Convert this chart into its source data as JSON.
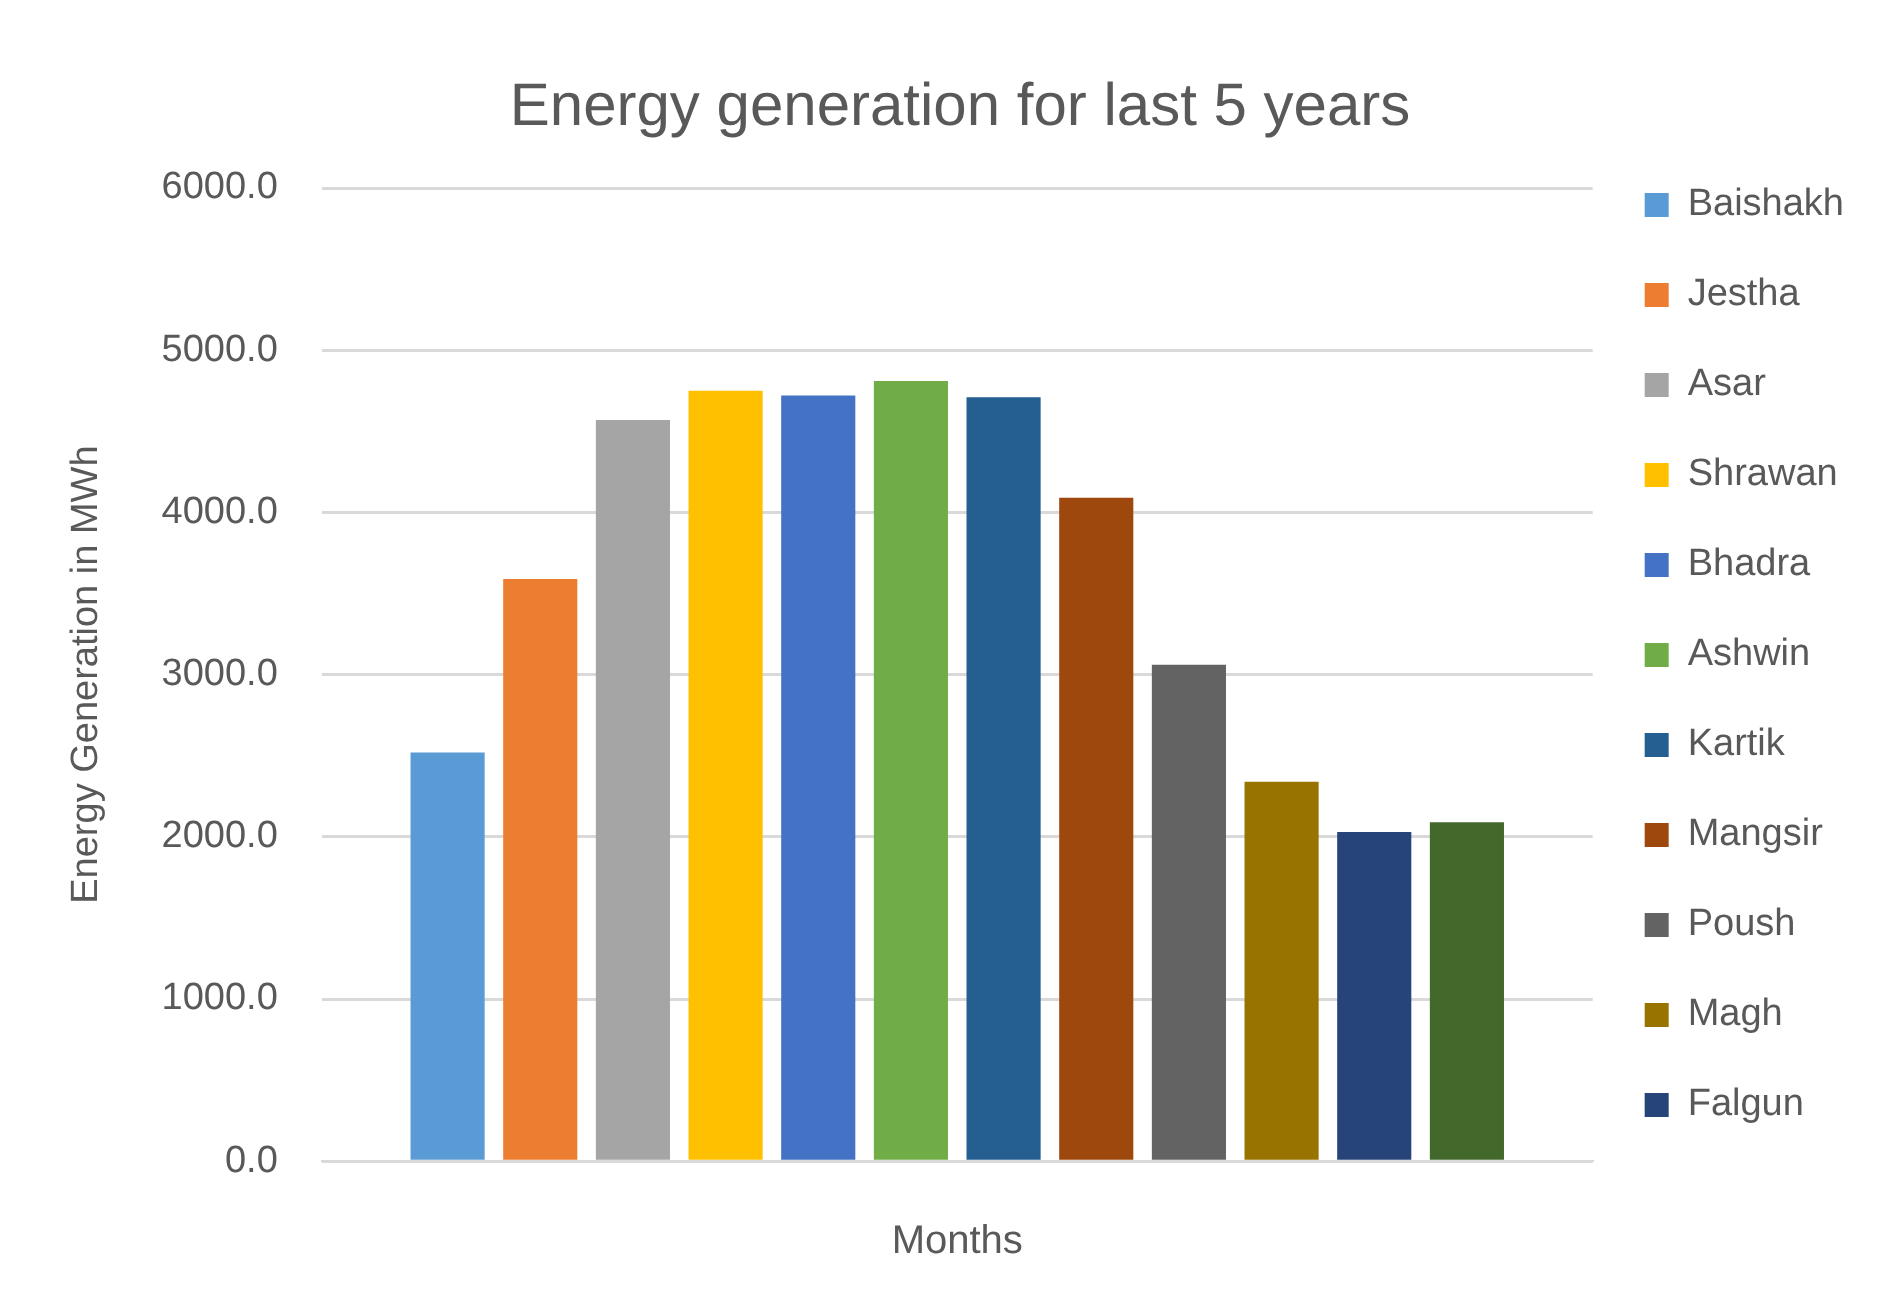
{
  "chart_data": {
    "type": "bar",
    "title": "Energy generation for last 5 years",
    "xlabel": "Months",
    "ylabel": "Energy Generation in MWh",
    "categories": [
      null
    ],
    "series": [
      {
        "name": "Baishakh",
        "color": "#5b9bd5",
        "values": [
          2520
        ]
      },
      {
        "name": "Jestha",
        "color": "#ed7d31",
        "values": [
          3590
        ]
      },
      {
        "name": "Asar",
        "color": "#a5a5a5",
        "values": [
          4570
        ]
      },
      {
        "name": "Shrawan",
        "color": "#ffc000",
        "values": [
          4750
        ]
      },
      {
        "name": "Bhadra",
        "color": "#4472c4",
        "values": [
          4720
        ]
      },
      {
        "name": "Ashwin",
        "color": "#70ad47",
        "values": [
          4810
        ]
      },
      {
        "name": "Kartik",
        "color": "#255e91",
        "values": [
          4710
        ]
      },
      {
        "name": "Mangsir",
        "color": "#9e480e",
        "values": [
          4090
        ]
      },
      {
        "name": "Poush",
        "color": "#636363",
        "values": [
          3060
        ]
      },
      {
        "name": "Magh",
        "color": "#997300",
        "values": [
          2340
        ]
      },
      {
        "name": "Falgun",
        "color": "#264478",
        "values": [
          2030
        ]
      },
      {
        "color": "#43682b",
        "values": [
          2090
        ]
      }
    ],
    "ylim": [
      0,
      6000
    ],
    "yticks": [
      {
        "value": 0,
        "label": "0.0"
      },
      {
        "value": 1000,
        "label": "1000.0"
      },
      {
        "value": 2000,
        "label": "2000.0"
      },
      {
        "value": 3000,
        "label": "3000.0"
      },
      {
        "value": 4000,
        "label": "4000.0"
      },
      {
        "value": 5000,
        "label": "5000.0"
      },
      {
        "value": 6000,
        "label": "6000.0"
      }
    ],
    "grid": "y",
    "legend": "right"
  }
}
